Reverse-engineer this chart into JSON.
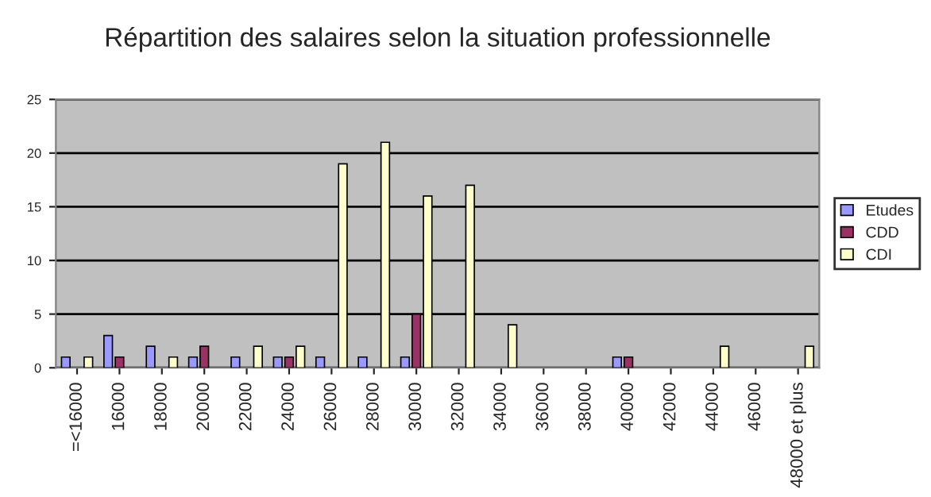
{
  "chart_data": {
    "type": "bar",
    "title": "Répartition des salaires selon la situation professionnelle",
    "categories": [
      "=<16000",
      "16000",
      "18000",
      "20000",
      "22000",
      "24000",
      "26000",
      "28000",
      "30000",
      "32000",
      "34000",
      "36000",
      "38000",
      "40000",
      "42000",
      "44000",
      "46000",
      "48000 et plus"
    ],
    "series": [
      {
        "name": "Etudes",
        "color": "#9999ff",
        "values": [
          1,
          3,
          2,
          1,
          1,
          1,
          1,
          1,
          1,
          null,
          null,
          null,
          null,
          1,
          null,
          null,
          null,
          null
        ]
      },
      {
        "name": "CDD",
        "color": "#993366",
        "values": [
          null,
          1,
          null,
          2,
          null,
          1,
          null,
          null,
          5,
          null,
          null,
          null,
          null,
          1,
          null,
          null,
          null,
          null
        ]
      },
      {
        "name": "CDI",
        "color": "#ffffcc",
        "values": [
          1,
          null,
          1,
          null,
          2,
          2,
          19,
          21,
          16,
          17,
          4,
          null,
          null,
          null,
          null,
          2,
          null,
          2
        ]
      }
    ],
    "ylim": [
      0,
      25
    ],
    "yticks": [
      0,
      5,
      10,
      15,
      20,
      25
    ],
    "grid": "y",
    "legend": "right"
  }
}
